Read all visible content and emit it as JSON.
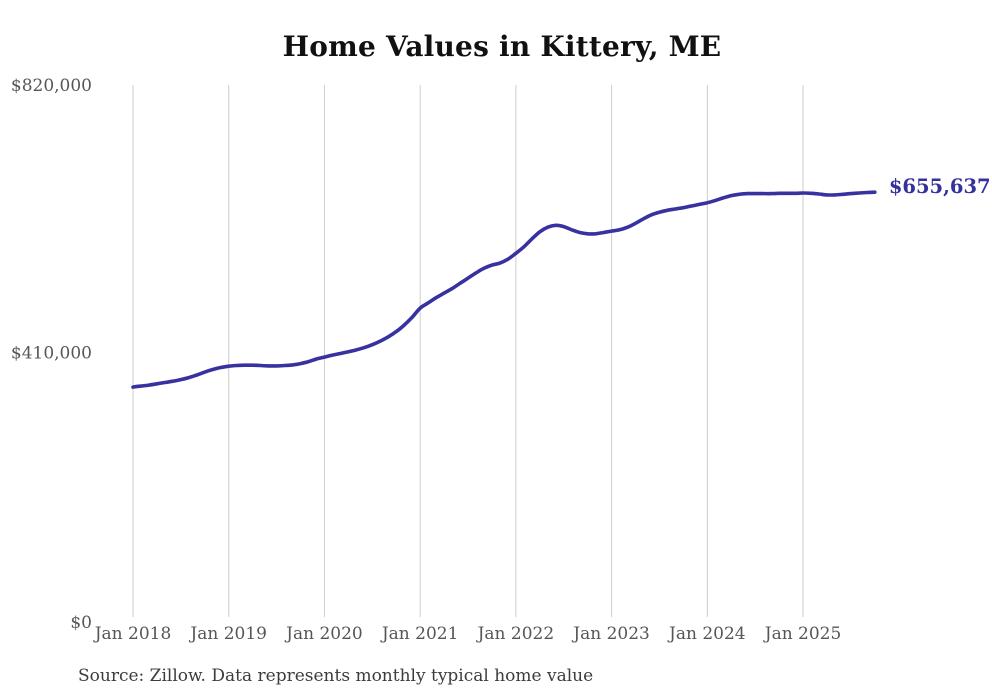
{
  "chart": {
    "title": "Home Values in Kittery, ME",
    "source": "Source: Zillow. Data represents monthly typical home value",
    "end_label": "$655,637"
  },
  "chart_data": {
    "type": "line",
    "title": "Home Values in Kittery, ME",
    "xlabel": "",
    "ylabel": "",
    "ylim": [
      0,
      820000
    ],
    "grid": "vertical-only",
    "legend": "none",
    "annotation": "$655,637",
    "source_note": "Source: Zillow. Data represents monthly typical home value",
    "colors": {
      "line": "#37329f",
      "end_label": "#34309c",
      "gridline": "#cccccc",
      "tick_label": "#565656",
      "title": "#111111",
      "source": "#3c3c3c",
      "background": "#ffffff"
    },
    "x_tick_labels": [
      "Jan 2018",
      "Jan 2019",
      "Jan 2020",
      "Jan 2021",
      "Jan 2022",
      "Jan 2023",
      "Jan 2024",
      "Jan 2025"
    ],
    "y_ticks": [
      {
        "value": 820000,
        "label": "$820,000"
      },
      {
        "value": 410000,
        "label": "$410,000"
      },
      {
        "value": 0,
        "label": "$0"
      }
    ],
    "series": [
      {
        "name": "Monthly typical home value",
        "start_month": "Jan 2018",
        "end_month": "Oct 2025",
        "frequency": "monthly",
        "last_value": 655637,
        "values": [
          357000,
          358500,
          360000,
          362000,
          364000,
          366000,
          368500,
          371500,
          375500,
          380000,
          384000,
          387000,
          389000,
          390000,
          390500,
          390500,
          390000,
          389500,
          389500,
          390000,
          391000,
          393000,
          396000,
          400000,
          403000,
          406000,
          408500,
          411000,
          414000,
          417500,
          422000,
          427500,
          434000,
          442000,
          452000,
          464000,
          478000,
          486000,
          494000,
          501000,
          508000,
          516000,
          524000,
          532000,
          539000,
          544000,
          547000,
          553000,
          562000,
          572000,
          584000,
          595000,
          602000,
          605000,
          603000,
          598000,
          594000,
          592000,
          592000,
          594000,
          596000,
          598000,
          602000,
          608000,
          615000,
          621000,
          625000,
          628000,
          630000,
          632000,
          634500,
          637000,
          639500,
          643000,
          647000,
          650500,
          652500,
          653500,
          653500,
          653500,
          653500,
          654000,
          654000,
          654000,
          654500,
          654000,
          653000,
          651500,
          651500,
          652500,
          653500,
          654500,
          655300,
          655637
        ]
      }
    ]
  }
}
